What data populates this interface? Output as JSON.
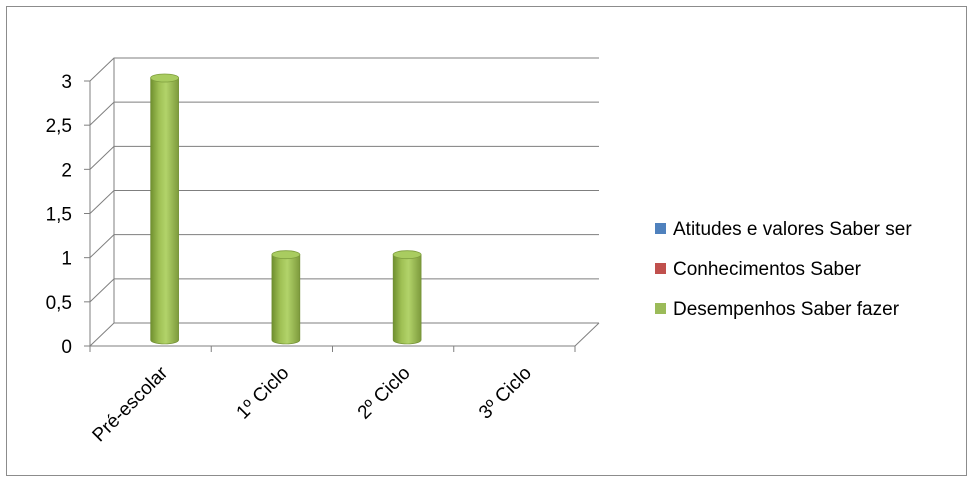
{
  "chart_data": {
    "type": "bar",
    "variant": "3d-cylinder",
    "title": "",
    "xlabel": "",
    "ylabel": "",
    "categories": [
      "Pré-escolar",
      "1º Ciclo",
      "2º Ciclo",
      "3º Ciclo"
    ],
    "series": [
      {
        "name": "Atitudes e valores Saber ser",
        "color": "#4F81BD",
        "values": [
          0,
          0,
          0,
          0
        ]
      },
      {
        "name": "Conhecimentos Saber",
        "color": "#C0504D",
        "values": [
          0,
          0,
          0,
          0
        ]
      },
      {
        "name": "Desempenhos Saber fazer",
        "color": "#9BBB59",
        "values": [
          3,
          1,
          1,
          0
        ]
      }
    ],
    "ylim": [
      0,
      3
    ],
    "yticks": [
      0,
      0.5,
      1,
      1.5,
      2,
      2.5,
      3
    ],
    "ytick_labels": [
      "0",
      "0,5",
      "1",
      "1,5",
      "2",
      "2,5",
      "3"
    ],
    "grid": true,
    "legend_position": "right"
  }
}
